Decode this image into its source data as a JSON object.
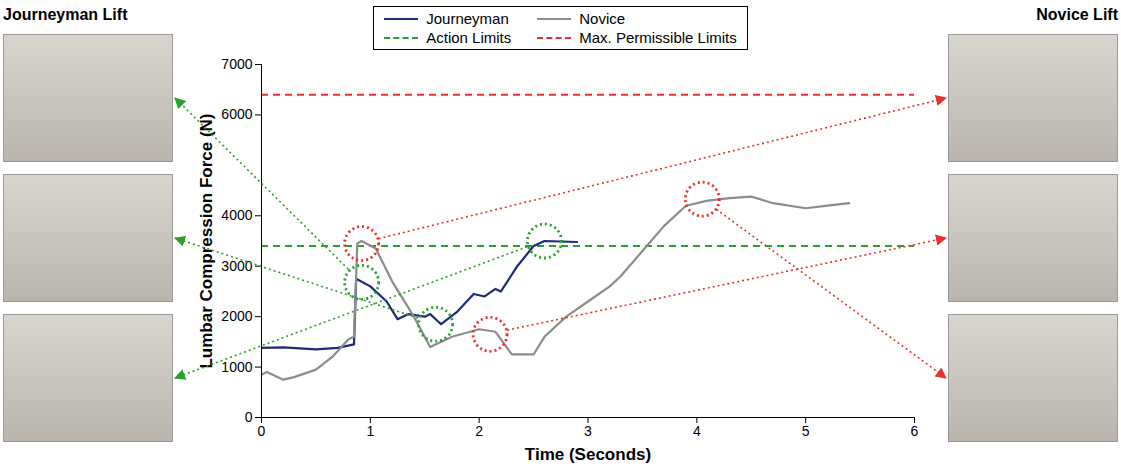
{
  "chart_data": {
    "type": "line",
    "x_label": "Time (Seconds)",
    "y_label": "Lumbar Compression Force (N)",
    "xlim": [
      0,
      6
    ],
    "xticks": [
      0,
      1,
      2,
      3,
      4,
      5,
      6
    ],
    "ylim": [
      0,
      7000
    ],
    "yticks": [
      0,
      1000,
      2000,
      3000,
      4000,
      6000,
      7000
    ],
    "grid": false,
    "legend": "top",
    "series": [
      {
        "name": "Journeyman",
        "color": "#1f2a7a",
        "x": [
          0,
          0.2,
          0.5,
          0.7,
          0.85,
          0.87,
          1.0,
          1.15,
          1.25,
          1.35,
          1.5,
          1.55,
          1.65,
          1.8,
          1.95,
          2.05,
          2.15,
          2.2,
          2.35,
          2.5,
          2.6,
          2.9
        ],
        "values": [
          1380,
          1390,
          1350,
          1380,
          1450,
          2750,
          2600,
          2300,
          1950,
          2050,
          2000,
          2050,
          1850,
          2100,
          2450,
          2400,
          2550,
          2500,
          3000,
          3400,
          3500,
          3480
        ]
      },
      {
        "name": "Novice",
        "color": "#8c8c8c",
        "x": [
          0,
          0.05,
          0.2,
          0.3,
          0.5,
          0.65,
          0.8,
          0.85,
          0.88,
          0.92,
          1.05,
          1.2,
          1.4,
          1.55,
          1.75,
          2.0,
          2.15,
          2.3,
          2.5,
          2.6,
          2.8,
          3.0,
          3.2,
          3.3,
          3.5,
          3.7,
          3.9,
          4.1,
          4.3,
          4.5,
          4.7,
          5.0,
          5.2,
          5.4
        ],
        "values": [
          850,
          900,
          750,
          800,
          950,
          1200,
          1550,
          1600,
          3450,
          3500,
          3350,
          2700,
          2000,
          1400,
          1600,
          1750,
          1700,
          1250,
          1250,
          1600,
          2000,
          2300,
          2600,
          2800,
          3300,
          3800,
          4200,
          4300,
          4350,
          4380,
          4250,
          4150,
          4200,
          4250
        ]
      }
    ],
    "limits": [
      {
        "name": "Action Limits",
        "color": "#2ca02c",
        "value": 3400,
        "line_style": "dashed"
      },
      {
        "name": "Max. Permissible Limits",
        "color": "#e8312a",
        "value": 6400,
        "line_style": "dashed"
      }
    ],
    "highlights": [
      {
        "series": "Journeyman",
        "x": 0.92,
        "y": 2680,
        "color": "#2ca02c"
      },
      {
        "series": "Journeyman",
        "x": 1.6,
        "y": 1850,
        "color": "#2ca02c"
      },
      {
        "series": "Journeyman",
        "x": 2.6,
        "y": 3500,
        "color": "#2ca02c"
      },
      {
        "series": "Novice",
        "x": 0.92,
        "y": 3450,
        "color": "#e8312a"
      },
      {
        "series": "Novice",
        "x": 2.1,
        "y": 1650,
        "color": "#e8312a"
      },
      {
        "series": "Novice",
        "x": 4.05,
        "y": 4330,
        "color": "#e8312a"
      }
    ],
    "side_panels": [
      {
        "title": "Journeyman Lift",
        "series": "Journeyman"
      },
      {
        "title": "Novice Lift",
        "series": "Novice"
      }
    ]
  }
}
